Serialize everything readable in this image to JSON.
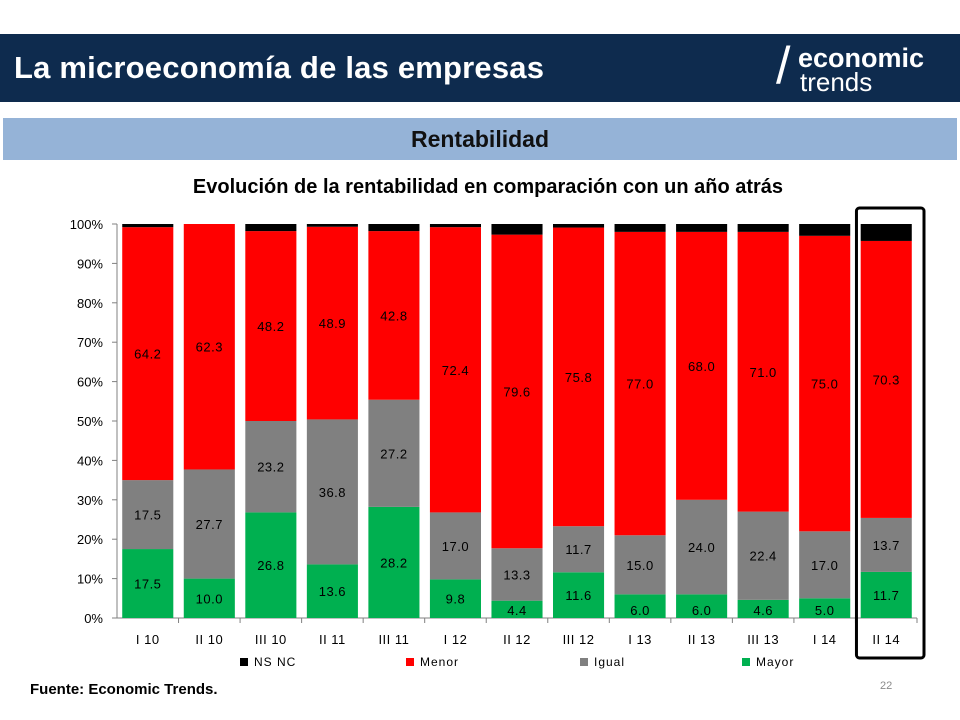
{
  "header": {
    "title": "La microeconomía de las empresas",
    "logo_line1": "economic",
    "logo_line2": "trends"
  },
  "section": {
    "title": "Rentabilidad"
  },
  "footer": {
    "source": "Fuente: Economic Trends.",
    "page_number": "22"
  },
  "colors": {
    "header_bg": "#0e2b4e",
    "section_bg": "#95b3d7",
    "nsnc": "#000000",
    "menor": "#ff0000",
    "igual": "#808080",
    "mayor": "#00b050",
    "highlight_border": "#000000"
  },
  "chart_data": {
    "type": "bar",
    "stacked": true,
    "title": "Evolución de la rentabilidad en comparación con un año atrás",
    "categories": [
      "I 10",
      "II 10",
      "III 10",
      "II 11",
      "III 11",
      "I 12",
      "II 12",
      "III 12",
      "I 13",
      "II 13",
      "III 13",
      "I 14",
      "II 14"
    ],
    "series": [
      {
        "name": "Mayor",
        "color": "#00b050",
        "values": [
          17.5,
          10.0,
          26.8,
          13.6,
          28.2,
          9.8,
          4.4,
          11.6,
          6.0,
          6.0,
          4.6,
          5.0,
          11.7
        ],
        "labels": [
          "17.5",
          "10.0",
          "26.8",
          "13.6",
          "28.2",
          "9.8",
          "4.4",
          "11.6",
          "6.0",
          "6.0",
          "4.6",
          "5.0",
          "11.7"
        ]
      },
      {
        "name": "Igual",
        "color": "#808080",
        "values": [
          17.5,
          27.7,
          23.2,
          36.8,
          27.2,
          17.0,
          13.3,
          11.7,
          15.0,
          24.0,
          22.4,
          17.0,
          13.7
        ],
        "labels": [
          "17.5",
          "27.7",
          "23.2",
          "36.8",
          "27.2",
          "17.0",
          "13.3",
          "11.7",
          "15.0",
          "24.0",
          "22.4",
          "17.0",
          "13.7"
        ]
      },
      {
        "name": "Menor",
        "color": "#ff0000",
        "values": [
          64.2,
          62.3,
          48.2,
          48.9,
          42.8,
          72.4,
          79.6,
          75.8,
          77.0,
          68.0,
          71.0,
          75.0,
          70.3
        ],
        "labels": [
          "64.2",
          "62.3",
          "48.2",
          "48.9",
          "42.8",
          "72.4",
          "79.6",
          "75.8",
          "77.0",
          "68.0",
          "71.0",
          "75.0",
          "70.3"
        ]
      },
      {
        "name": "NS NC",
        "color": "#000000",
        "values": [
          0.8,
          0.0,
          1.8,
          0.7,
          1.8,
          0.8,
          2.7,
          0.9,
          2.0,
          2.0,
          2.0,
          3.0,
          4.3
        ],
        "labels": []
      }
    ],
    "legend_order": [
      "NS NC",
      "Menor",
      "Igual",
      "Mayor"
    ],
    "legend_position": "bottom",
    "y_ticks": [
      "0%",
      "10%",
      "20%",
      "30%",
      "40%",
      "50%",
      "60%",
      "70%",
      "80%",
      "90%",
      "100%"
    ],
    "ylim": [
      0,
      100
    ],
    "highlight_category": "II 14",
    "grid": false
  }
}
